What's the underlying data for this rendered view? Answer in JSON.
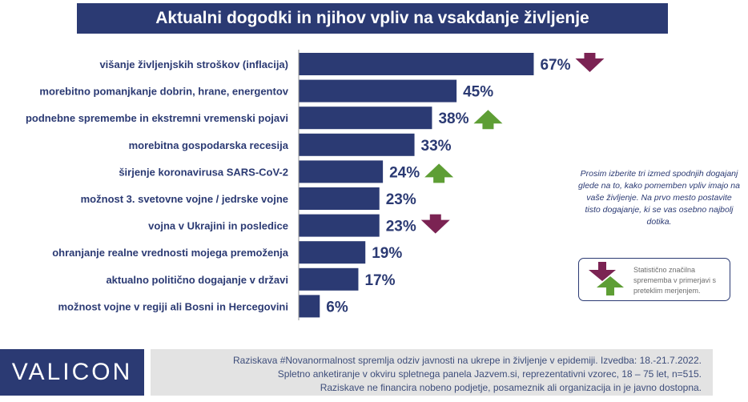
{
  "title": "Aktualni dogodki in njihov vpliv na vsakdanje življenje",
  "note": "Prosim izberite tri izmed spodnjih dogajanj glede na to, kako pomemben vpliv imajo na vaše življenje. Na prvo mesto postavite tisto dogajanje, ki se vas osebno najbolj dotika.",
  "legend_text": "Statistično značilna sprememba v primerjavi s preteklim merjenjem.",
  "logo": "VALICON",
  "footer": {
    "line1": "Raziskava #Novanormalnost spremlja odziv javnosti na ukrepe in življenje v epidemiji. Izvedba: 18.-21.7.2022.",
    "line2": "Spletno anketiranje v okviru spletnega panela Jazvem.si, reprezentativni vzorec, 18 – 75 let, n=515.",
    "line3": "Raziskave ne financira nobeno podjetje, posameznik ali organizacija in je javno dostopna."
  },
  "colors": {
    "bar": "#2b3a73",
    "down_arrow": "#7b2353",
    "up_arrow": "#5e9e35",
    "label": "#2b3a73"
  },
  "chart_data": {
    "type": "bar",
    "orientation": "horizontal",
    "title": "Aktualni dogodki in njihov vpliv na vsakdanje življenje",
    "unit": "%",
    "xlim": [
      0,
      100
    ],
    "grid": false,
    "categories": [
      "višanje življenjskih stroškov (inflacija)",
      "morebitno pomanjkanje dobrin, hrane, energentov",
      "podnebne spremembe in ekstremni vremenski pojavi",
      "morebitna gospodarska recesija",
      "širjenje koronavirusa SARS-CoV-2",
      "možnost 3. svetovne vojne / jedrske vojne",
      "vojna v Ukrajini in posledice",
      "ohranjanje realne vrednosti mojega premoženja",
      "aktualno politično dogajanje v državi",
      "možnost vojne v regiji ali Bosni in Hercegovini"
    ],
    "values": [
      67,
      45,
      38,
      33,
      24,
      23,
      23,
      19,
      17,
      6
    ],
    "value_labels": [
      "67%",
      "45%",
      "38%",
      "33%",
      "24%",
      "23%",
      "23%",
      "19%",
      "17%",
      "6%"
    ],
    "change_markers": [
      "down",
      "",
      "up",
      "",
      "up",
      "",
      "down",
      "",
      "",
      ""
    ]
  }
}
